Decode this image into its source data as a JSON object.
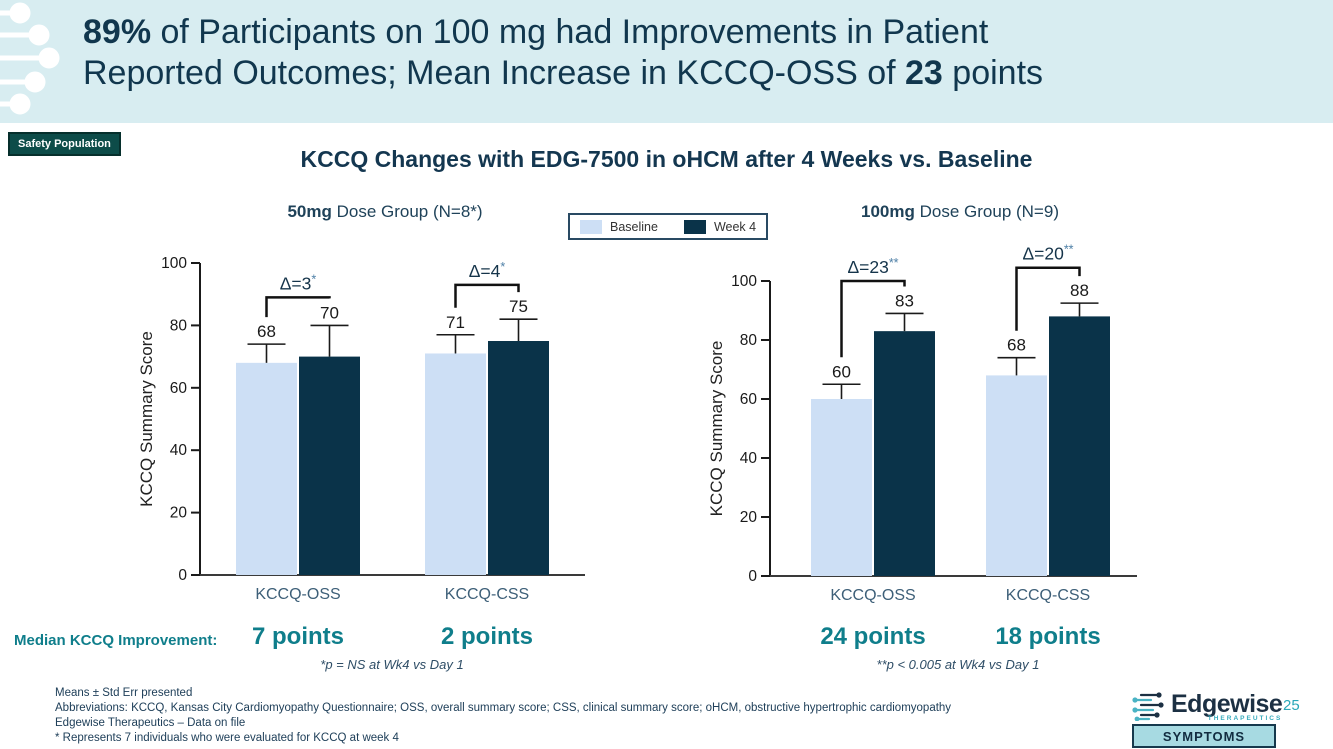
{
  "header": {
    "title_lines": [
      [
        {
          "text": "89%",
          "bold": true
        },
        {
          "text": " of Participants on 100 mg had Improvements in Patient",
          "bold": false
        }
      ],
      [
        {
          "text": "Reported Outcomes; Mean Increase in KCCQ-OSS of ",
          "bold": false
        },
        {
          "text": "23",
          "bold": true
        },
        {
          "text": " points",
          "bold": false
        }
      ]
    ]
  },
  "population_badge": "Safety Population",
  "main_chart_title": "KCCQ Changes with EDG-7500 in oHCM after 4 Weeks vs. Baseline",
  "legend": {
    "items": [
      {
        "label": "Baseline",
        "color": "#cddff5"
      },
      {
        "label": "Week 4",
        "color": "#0a3349"
      }
    ]
  },
  "median_row_label": "Median KCCQ Improvement:",
  "chart_data": [
    {
      "type": "bar",
      "group_title_bold": "50mg",
      "group_title_rest": " Dose Group (N=8*)",
      "ylabel": "KCCQ Summary Score",
      "ylim": [
        0,
        100
      ],
      "yticks": [
        0,
        20,
        40,
        60,
        80,
        100
      ],
      "categories": [
        "KCCQ-OSS",
        "KCCQ-CSS"
      ],
      "series": [
        {
          "name": "Baseline",
          "values": [
            68,
            71
          ],
          "errors": [
            6,
            6
          ]
        },
        {
          "name": "Week 4",
          "values": [
            70,
            75
          ],
          "errors": [
            10,
            7
          ]
        }
      ],
      "deltas": [
        {
          "label": "Δ=3",
          "sup": "*",
          "bracket_y": 89
        },
        {
          "label": "Δ=4",
          "sup": "*",
          "bracket_y": 93
        }
      ],
      "median_improvements": [
        "7 points",
        "2 points"
      ],
      "footnote": "*p = NS at Wk4 vs Day 1"
    },
    {
      "type": "bar",
      "group_title_bold": "100mg",
      "group_title_rest": " Dose Group (N=9)",
      "ylabel": "KCCQ Summary Score",
      "ylim": [
        0,
        100
      ],
      "yticks": [
        0,
        20,
        40,
        60,
        80,
        100
      ],
      "categories": [
        "KCCQ-OSS",
        "KCCQ-CSS"
      ],
      "series": [
        {
          "name": "Baseline",
          "values": [
            60,
            68
          ],
          "errors": [
            5,
            6
          ]
        },
        {
          "name": "Week 4",
          "values": [
            83,
            88
          ],
          "errors": [
            6,
            4.5
          ]
        }
      ],
      "deltas": [
        {
          "label": "Δ=23",
          "sup": "**",
          "bracket_y": 100
        },
        {
          "label": "Δ=20",
          "sup": "**",
          "bracket_y": 104.5
        }
      ],
      "median_improvements": [
        "24 points",
        "18 points"
      ],
      "footnote": "**p < 0.005 at Wk4 vs Day 1"
    }
  ],
  "footnotes": [
    "Means ± Std Err presented",
    "Abbreviations: KCCQ, Kansas City Cardiomyopathy Questionnaire; OSS, overall summary score; CSS, clinical summary score; oHCM, obstructive hypertrophic cardiomyopathy",
    "Edgewise Therapeutics – Data on file",
    "* Represents 7 individuals who were evaluated for KCCQ at week 4"
  ],
  "footer": {
    "logo_name": "Edgewise",
    "logo_tagline": "THERAPEUTICS",
    "page_number": "25",
    "category_badge": "SYMPTOMS"
  },
  "colors": {
    "header_bg": "#d8edf1",
    "title_text": "#11374e",
    "badge_bg": "#0d4c49",
    "teal_accent": "#0f7e8b",
    "sup_asterisk": "#4d7fa6",
    "category_label": "#3d5f78",
    "bar_light": "#cddff5",
    "bar_dark": "#0a3349"
  }
}
